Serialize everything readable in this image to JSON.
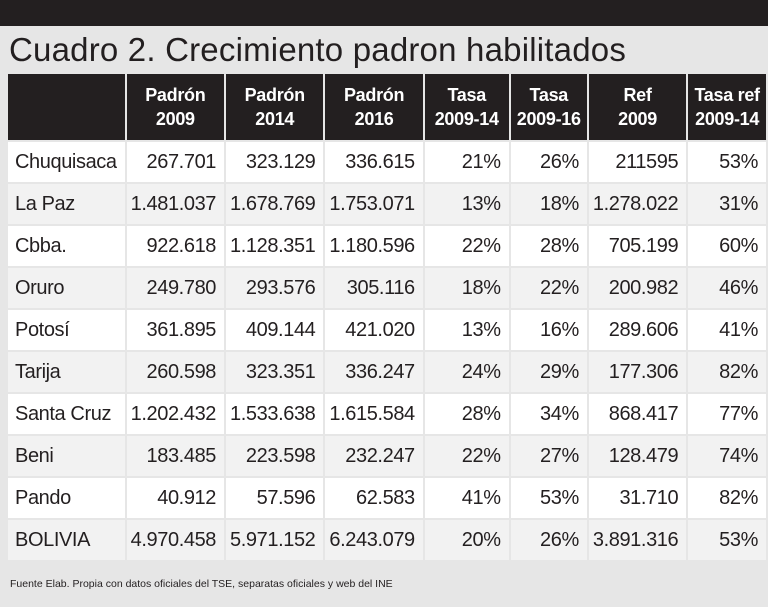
{
  "title": "Cuadro 2. Crecimiento padron habilitados",
  "headers": [
    [
      "",
      ""
    ],
    [
      "Padrón",
      "2009"
    ],
    [
      "Padrón",
      "2014"
    ],
    [
      "Padrón",
      "2016"
    ],
    [
      "Tasa",
      "2009-14"
    ],
    [
      "Tasa",
      "2009-16"
    ],
    [
      "Ref",
      "2009"
    ],
    [
      "Tasa ref",
      "2009-14"
    ]
  ],
  "rows": [
    [
      "Chuquisaca",
      "267.701",
      "323.129",
      "336.615",
      "21%",
      "26%",
      "211595",
      "53%"
    ],
    [
      "La Paz",
      "1.481.037",
      "1.678.769",
      "1.753.071",
      "13%",
      "18%",
      "1.278.022",
      "31%"
    ],
    [
      "Cbba.",
      "922.618",
      "1.128.351",
      "1.180.596",
      "22%",
      "28%",
      "705.199",
      "60%"
    ],
    [
      "Oruro",
      "249.780",
      "293.576",
      "305.116",
      "18%",
      "22%",
      "200.982",
      "46%"
    ],
    [
      "Potosí",
      "361.895",
      "409.144",
      "421.020",
      "13%",
      "16%",
      "289.606",
      "41%"
    ],
    [
      "Tarija",
      "260.598",
      "323.351",
      "336.247",
      "24%",
      "29%",
      "177.306",
      "82%"
    ],
    [
      "Santa Cruz",
      "1.202.432",
      "1.533.638",
      "1.615.584",
      "28%",
      "34%",
      "868.417",
      "77%"
    ],
    [
      "Beni",
      "183.485",
      "223.598",
      "232.247",
      "22%",
      "27%",
      "128.479",
      "74%"
    ],
    [
      "Pando",
      "40.912",
      "57.596",
      "62.583",
      "41%",
      "53%",
      "31.710",
      "82%"
    ],
    [
      "BOLIVIA",
      "4.970.458",
      "5.971.152",
      "6.243.079",
      "20%",
      "26%",
      "3.891.316",
      "53%"
    ]
  ],
  "source": "Fuente Elab. Propia con datos oficiales del TSE, separatas oficiales y web del INE"
}
